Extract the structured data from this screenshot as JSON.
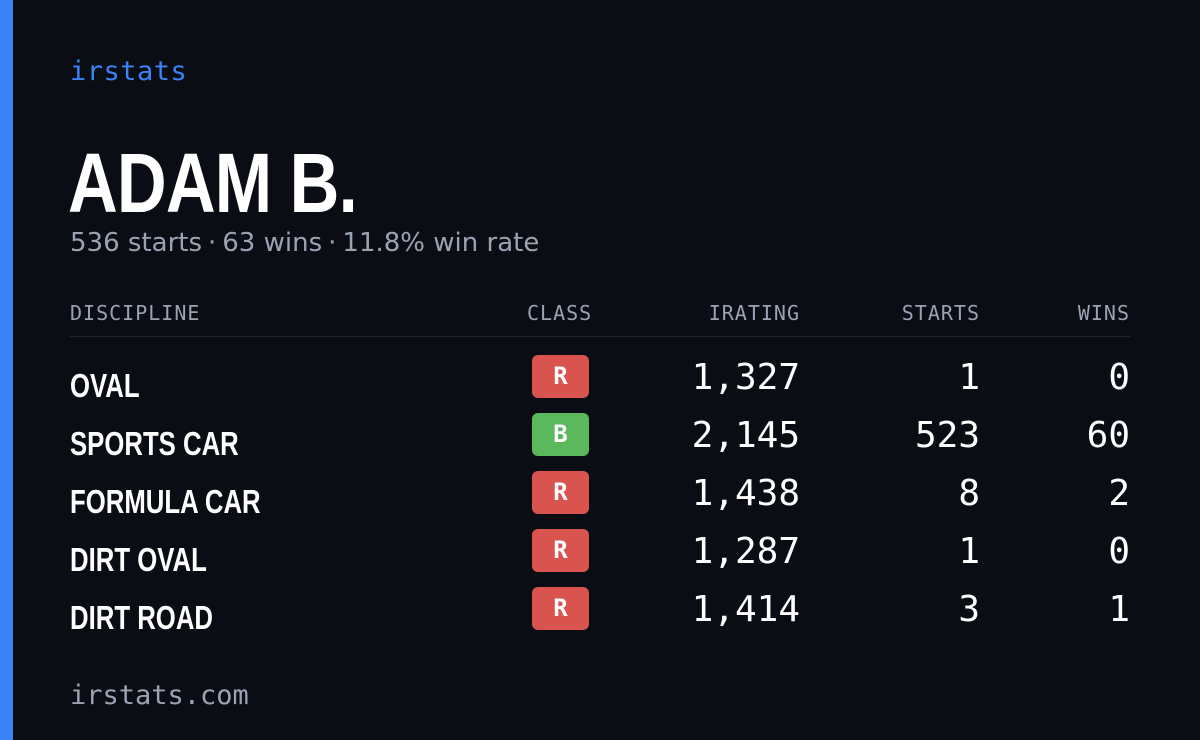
{
  "brand": "irstats",
  "player": {
    "name": "ADAM B.",
    "starts_text": "536 starts",
    "wins_text": "63 wins",
    "winrate_text": "11.8% win rate",
    "separator": "·"
  },
  "table": {
    "headers": {
      "discipline": "DISCIPLINE",
      "class": "CLASS",
      "irating": "IRATING",
      "starts": "STARTS",
      "wins": "WINS"
    },
    "rows": [
      {
        "discipline": "OVAL",
        "class": "R",
        "class_color": "#d9534f",
        "irating": "1,327",
        "starts": "1",
        "wins": "0"
      },
      {
        "discipline": "SPORTS CAR",
        "class": "B",
        "class_color": "#5cb85c",
        "irating": "2,145",
        "starts": "523",
        "wins": "60"
      },
      {
        "discipline": "FORMULA CAR",
        "class": "R",
        "class_color": "#d9534f",
        "irating": "1,438",
        "starts": "8",
        "wins": "2"
      },
      {
        "discipline": "DIRT OVAL",
        "class": "R",
        "class_color": "#d9534f",
        "irating": "1,287",
        "starts": "1",
        "wins": "0"
      },
      {
        "discipline": "DIRT ROAD",
        "class": "R",
        "class_color": "#d9534f",
        "irating": "1,414",
        "starts": "3",
        "wins": "1"
      }
    ]
  },
  "footer": "irstats.com",
  "colors": {
    "background": "#0a0d14",
    "accent": "#3b82f6",
    "muted": "#9aa3b2"
  }
}
